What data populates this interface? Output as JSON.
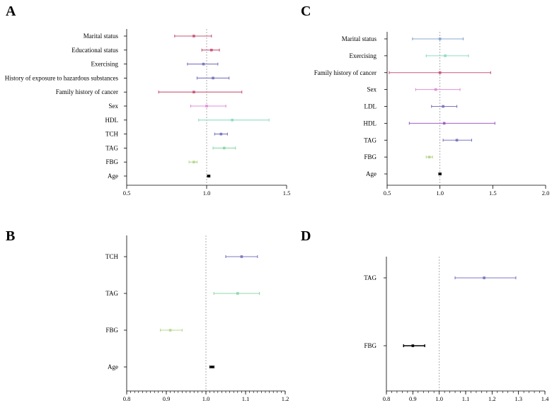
{
  "chart_data": [
    {
      "panel": "A",
      "type": "forest",
      "xlim": [
        0.5,
        1.5
      ],
      "ticks": [
        "0.5",
        "1.0",
        "1.5"
      ],
      "reference_line": 1.0,
      "rows": [
        {
          "label": "Marital status",
          "est": 0.92,
          "lo": 0.8,
          "hi": 1.03,
          "color": "#c8587a"
        },
        {
          "label": "Educational status",
          "est": 1.03,
          "lo": 0.97,
          "hi": 1.08,
          "color": "#c8587a"
        },
        {
          "label": "Exercising",
          "est": 0.98,
          "lo": 0.88,
          "hi": 1.07,
          "color": "#7c78c0"
        },
        {
          "label": "History of exposure to hazardous substances",
          "est": 1.04,
          "lo": 0.94,
          "hi": 1.14,
          "color": "#7c78c0"
        },
        {
          "label": "Family history of cancer",
          "est": 0.92,
          "lo": 0.7,
          "hi": 1.22,
          "color": "#c8587a"
        },
        {
          "label": "Sex",
          "est": 1.0,
          "lo": 0.9,
          "hi": 1.12,
          "color": "#e090d8"
        },
        {
          "label": "HDL",
          "est": 1.16,
          "lo": 0.95,
          "hi": 1.39,
          "color": "#90dcc0"
        },
        {
          "label": "TCH",
          "est": 1.09,
          "lo": 1.05,
          "hi": 1.13,
          "color": "#7c78c0"
        },
        {
          "label": "TAG",
          "est": 1.11,
          "lo": 1.04,
          "hi": 1.18,
          "color": "#8ed8a8"
        },
        {
          "label": "FBG",
          "est": 0.92,
          "lo": 0.89,
          "hi": 0.94,
          "color": "#b8d890"
        },
        {
          "label": "Age",
          "est": 1.01,
          "lo": 1.01,
          "hi": 1.02,
          "color": "#000000"
        }
      ]
    },
    {
      "panel": "B",
      "type": "forest",
      "xlim": [
        0.8,
        1.2
      ],
      "ticks": [
        "0.8",
        "0.9",
        "1.0",
        "1.1",
        "1.2"
      ],
      "minor_ticks": true,
      "reference_line": 1.0,
      "rows": [
        {
          "label": "TCH",
          "est": 1.09,
          "lo": 1.05,
          "hi": 1.13,
          "color": "#7c78c0"
        },
        {
          "label": "TAG",
          "est": 1.08,
          "lo": 1.02,
          "hi": 1.135,
          "color": "#8ed8a8"
        },
        {
          "label": "FBG",
          "est": 0.91,
          "lo": 0.885,
          "hi": 0.94,
          "color": "#b8d890"
        },
        {
          "label": "Age",
          "est": 1.015,
          "lo": 1.01,
          "hi": 1.02,
          "color": "#000000"
        }
      ]
    },
    {
      "panel": "C",
      "type": "forest",
      "xlim": [
        0.5,
        2.0
      ],
      "ticks": [
        "0.5",
        "1.0",
        "1.5",
        "2.0"
      ],
      "reference_line": 1.0,
      "rows": [
        {
          "label": "Marital status",
          "est": 1.0,
          "lo": 0.74,
          "hi": 1.22,
          "color": "#88a8d0"
        },
        {
          "label": "Exercising",
          "est": 1.05,
          "lo": 0.87,
          "hi": 1.27,
          "color": "#90dcc0"
        },
        {
          "label": "Family history of cancer",
          "est": 1.0,
          "lo": 0.52,
          "hi": 1.48,
          "color": "#c8587a"
        },
        {
          "label": "Sex",
          "est": 0.96,
          "lo": 0.77,
          "hi": 1.19,
          "color": "#e090d8"
        },
        {
          "label": "LDL",
          "est": 1.03,
          "lo": 0.92,
          "hi": 1.16,
          "color": "#7c78c0"
        },
        {
          "label": "HDL",
          "est": 1.04,
          "lo": 0.71,
          "hi": 1.52,
          "color": "#a060c0"
        },
        {
          "label": "TAG",
          "est": 1.16,
          "lo": 1.03,
          "hi": 1.3,
          "color": "#7c78c0"
        },
        {
          "label": "FBG",
          "est": 0.9,
          "lo": 0.87,
          "hi": 0.93,
          "color": "#b8d890"
        },
        {
          "label": "Age",
          "est": 1.0,
          "lo": 0.99,
          "hi": 1.01,
          "color": "#000000"
        }
      ]
    },
    {
      "panel": "D",
      "type": "forest",
      "xlim": [
        0.8,
        1.4
      ],
      "ticks": [
        "0.8",
        "0.9",
        "1.0",
        "1.1",
        "1.2",
        "1.3",
        "1.4"
      ],
      "minor_ticks": true,
      "reference_line": 1.0,
      "rows": [
        {
          "label": "TAG",
          "est": 1.17,
          "lo": 1.06,
          "hi": 1.29,
          "color": "#7c78c0"
        },
        {
          "label": "FBG",
          "est": 0.9,
          "lo": 0.865,
          "hi": 0.945,
          "color": "#000000"
        }
      ]
    }
  ]
}
